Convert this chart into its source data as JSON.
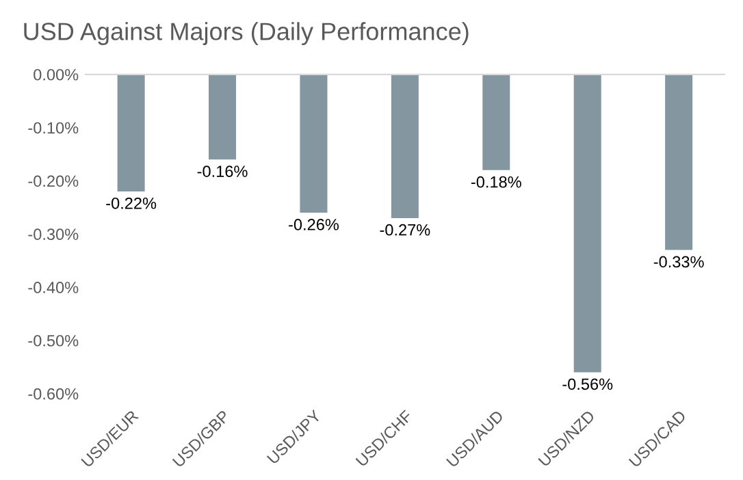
{
  "chart_data": {
    "type": "bar",
    "title": "USD Against Majors (Daily Performance)",
    "categories": [
      "USD/EUR",
      "USD/GBP",
      "USD/JPY",
      "USD/CHF",
      "USD/AUD",
      "USD/NZD",
      "USD/CAD"
    ],
    "values": [
      -0.22,
      -0.16,
      -0.26,
      -0.27,
      -0.18,
      -0.56,
      -0.33
    ],
    "value_labels": [
      "-0.22%",
      "-0.16%",
      "-0.26%",
      "-0.27%",
      "-0.18%",
      "-0.56%",
      "-0.33%"
    ],
    "color": "#8497a0",
    "ylim": [
      -0.6,
      0
    ],
    "yticks": [
      {
        "value": 0,
        "label": "0.00%"
      },
      {
        "value": -0.1,
        "label": "-0.10%"
      },
      {
        "value": -0.2,
        "label": "-0.20%"
      },
      {
        "value": -0.3,
        "label": "-0.30%"
      },
      {
        "value": -0.4,
        "label": "-0.40%"
      },
      {
        "value": -0.5,
        "label": "-0.50%"
      },
      {
        "value": -0.6,
        "label": "-0.60%"
      }
    ],
    "grid": false,
    "legend": false
  }
}
